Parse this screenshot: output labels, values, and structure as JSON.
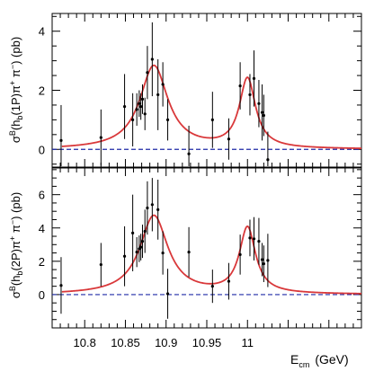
{
  "chart_data": [
    {
      "type": "scatter",
      "ylabel_main": "σ",
      "ylabel_sup": "B",
      "ylabel_rest": "(h",
      "ylabel_sub": "b",
      "ylabel_state": "(1P)π",
      "ylabel_tail": " π",
      "ylabel_unit": ")  (pb)",
      "xlim": [
        10.76,
        11.14
      ],
      "ylim": [
        -0.6,
        4.6
      ],
      "yticks": [
        0,
        2,
        4
      ],
      "ytick_labels": [
        "0",
        "2",
        "4"
      ],
      "reference_line": 0,
      "colors": {
        "fit": "#d9383a",
        "baseline": "#1f2aa6",
        "points": "#000000"
      },
      "points": [
        {
          "x": 10.771,
          "y": 0.3,
          "err": 1.2
        },
        {
          "x": 10.82,
          "y": 0.4,
          "err": 0.95
        },
        {
          "x": 10.849,
          "y": 1.45,
          "err": 1.1
        },
        {
          "x": 10.859,
          "y": 1.0,
          "err": 0.9
        },
        {
          "x": 10.864,
          "y": 1.35,
          "err": 0.55
        },
        {
          "x": 10.867,
          "y": 1.55,
          "err": 0.45
        },
        {
          "x": 10.869,
          "y": 1.45,
          "err": 0.45
        },
        {
          "x": 10.871,
          "y": 1.7,
          "err": 0.5
        },
        {
          "x": 10.874,
          "y": 1.2,
          "err": 0.55
        },
        {
          "x": 10.877,
          "y": 2.6,
          "err": 0.9
        },
        {
          "x": 10.883,
          "y": 3.05,
          "err": 1.25
        },
        {
          "x": 10.89,
          "y": 1.85,
          "err": 1.2
        },
        {
          "x": 10.896,
          "y": 2.2,
          "err": 0.75
        },
        {
          "x": 10.902,
          "y": 1.0,
          "err": 0.7
        },
        {
          "x": 10.928,
          "y": -0.15,
          "err": 0.95
        },
        {
          "x": 10.957,
          "y": 1.0,
          "err": 0.95
        },
        {
          "x": 10.977,
          "y": 0.35,
          "err": 0.7
        },
        {
          "x": 10.991,
          "y": 2.15,
          "err": 0.8
        },
        {
          "x": 11.003,
          "y": 1.85,
          "err": 0.7
        },
        {
          "x": 11.008,
          "y": 2.4,
          "err": 0.95
        },
        {
          "x": 11.014,
          "y": 1.55,
          "err": 0.8
        },
        {
          "x": 11.018,
          "y": 1.25,
          "err": 0.95
        },
        {
          "x": 11.02,
          "y": 1.15,
          "err": 0.7
        },
        {
          "x": 11.025,
          "y": -0.35,
          "err": 0.95
        }
      ],
      "fit": {
        "baseline": 0,
        "peaks": [
          {
            "center": 10.885,
            "amp": 2.82,
            "width": 0.021
          },
          {
            "center": 11.0,
            "amp": 2.35,
            "width": 0.012
          }
        ]
      }
    },
    {
      "type": "scatter",
      "ylabel_main": "σ",
      "ylabel_sup": "B",
      "ylabel_rest": "(h",
      "ylabel_sub": "b",
      "ylabel_state": "(2P)π",
      "ylabel_tail": " π",
      "ylabel_unit": ")  (pb)",
      "xlabel_main": "E",
      "xlabel_sub": "cm",
      "xlabel_unit": "(GeV)",
      "xlim": [
        10.76,
        11.14
      ],
      "ylim": [
        -2.0,
        7.6
      ],
      "yticks": [
        0,
        2,
        4,
        6
      ],
      "ytick_labels": [
        "0",
        "2",
        "4",
        "6"
      ],
      "xticks": [
        10.8,
        10.85,
        10.9,
        10.95,
        11.0
      ],
      "xtick_labels": [
        "10.8",
        "10.85",
        "10.9",
        "10.95",
        "11"
      ],
      "reference_line": 0,
      "colors": {
        "fit": "#d9383a",
        "baseline": "#1f2aa6",
        "points": "#000000"
      },
      "points": [
        {
          "x": 10.771,
          "y": 0.55,
          "err": 1.7
        },
        {
          "x": 10.82,
          "y": 1.8,
          "err": 1.3
        },
        {
          "x": 10.849,
          "y": 2.3,
          "err": 1.8
        },
        {
          "x": 10.859,
          "y": 3.7,
          "err": 2.3
        },
        {
          "x": 10.864,
          "y": 2.55,
          "err": 0.9
        },
        {
          "x": 10.867,
          "y": 2.75,
          "err": 0.8
        },
        {
          "x": 10.869,
          "y": 2.85,
          "err": 0.8
        },
        {
          "x": 10.871,
          "y": 3.2,
          "err": 1.0
        },
        {
          "x": 10.874,
          "y": 3.8,
          "err": 1.3
        },
        {
          "x": 10.877,
          "y": 5.2,
          "err": 1.6
        },
        {
          "x": 10.883,
          "y": 5.4,
          "err": 1.6
        },
        {
          "x": 10.89,
          "y": 5.1,
          "err": 1.8
        },
        {
          "x": 10.896,
          "y": 2.5,
          "err": 1.3
        },
        {
          "x": 10.902,
          "y": 0.05,
          "err": 1.5
        },
        {
          "x": 10.928,
          "y": 2.55,
          "err": 1.5
        },
        {
          "x": 10.957,
          "y": 0.5,
          "err": 1.0
        },
        {
          "x": 10.977,
          "y": 0.8,
          "err": 1.1
        },
        {
          "x": 10.991,
          "y": 2.4,
          "err": 1.2
        },
        {
          "x": 11.003,
          "y": 3.4,
          "err": 1.1
        },
        {
          "x": 11.008,
          "y": 3.35,
          "err": 1.3
        },
        {
          "x": 11.014,
          "y": 3.2,
          "err": 1.4
        },
        {
          "x": 11.018,
          "y": 2.1,
          "err": 1.0
        },
        {
          "x": 11.02,
          "y": 1.85,
          "err": 1.1
        },
        {
          "x": 11.025,
          "y": 2.05,
          "err": 1.6
        }
      ],
      "fit": {
        "baseline": 0,
        "peaks": [
          {
            "center": 10.885,
            "amp": 4.72,
            "width": 0.021
          },
          {
            "center": 11.0,
            "amp": 3.95,
            "width": 0.012
          }
        ]
      }
    }
  ]
}
